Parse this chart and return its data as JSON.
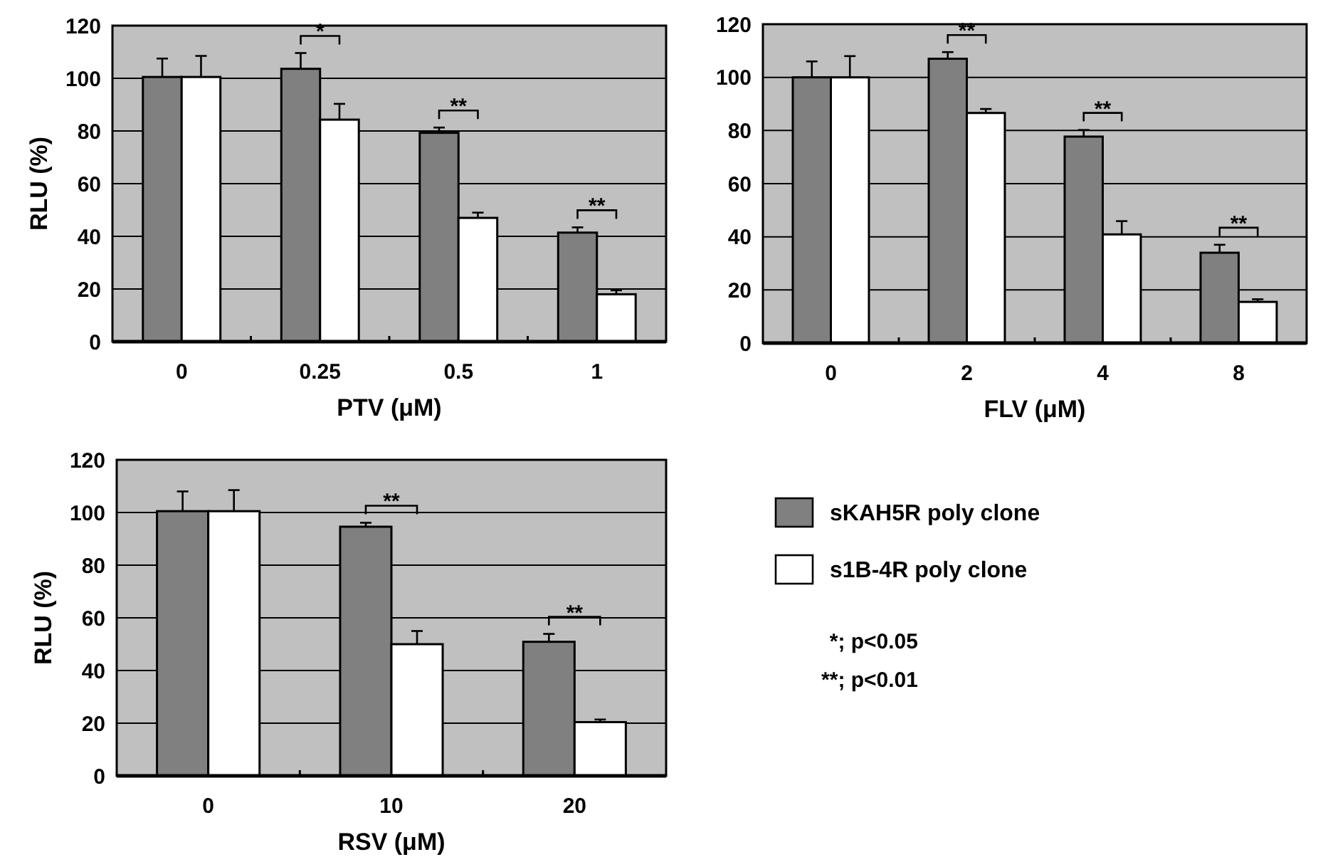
{
  "chart_data": [
    {
      "type": "bar",
      "xlabel": "PTV (μM)",
      "ylabel": "RLU (%)",
      "categories": [
        "0",
        "0.25",
        "0.5",
        "1"
      ],
      "series": [
        {
          "color": "#808080",
          "values": [
            100.5,
            103.6,
            79.3,
            41.4
          ],
          "errors": [
            7,
            6,
            2,
            2
          ]
        },
        {
          "color": "#ffffff",
          "values": [
            100.5,
            84.3,
            47,
            18
          ],
          "errors": [
            8,
            6,
            2,
            1.5
          ]
        }
      ],
      "ylim": [
        0,
        120
      ],
      "yticks": [
        0,
        20,
        40,
        60,
        80,
        100,
        120
      ],
      "grid": "y",
      "legend": false,
      "annotations": [
        "*",
        "**",
        "**"
      ]
    },
    {
      "type": "bar",
      "xlabel": "FLV (μM)",
      "categories": [
        "0",
        "2",
        "4",
        "8"
      ],
      "series": [
        {
          "color": "#808080",
          "values": [
            100,
            107,
            77.7,
            34
          ],
          "errors": [
            6,
            2.5,
            2.5,
            3
          ]
        },
        {
          "color": "#ffffff",
          "values": [
            100,
            86.6,
            40.9,
            15.5
          ],
          "errors": [
            8,
            1.5,
            5,
            1
          ]
        }
      ],
      "ylim": [
        0,
        120
      ],
      "yticks": [
        0,
        20,
        40,
        60,
        80,
        100,
        120
      ],
      "grid": "y",
      "legend": false,
      "annotations": [
        "**",
        "**",
        "**"
      ]
    },
    {
      "type": "bar",
      "xlabel": "RSV (μM)",
      "ylabel": "RLU (%)",
      "categories": [
        "0",
        "10",
        "20"
      ],
      "series": [
        {
          "name": "sKAH5R poly clone",
          "color": "#808080",
          "values": [
            100.5,
            94.6,
            50.9
          ],
          "errors": [
            7.5,
            1.5,
            3
          ]
        },
        {
          "name": "s1B-4R poly clone",
          "color": "#ffffff",
          "values": [
            100.5,
            50,
            20.4
          ],
          "errors": [
            8,
            5,
            1
          ]
        }
      ],
      "ylim": [
        0,
        120
      ],
      "yticks": [
        0,
        20,
        40,
        60,
        80,
        100,
        120
      ],
      "grid": "y",
      "legend": "right",
      "annotations": [
        "**",
        "**"
      ]
    },
    {
      "type": "other",
      "annotations": [
        "*; p<0.05",
        "**; p<0.01"
      ]
    }
  ]
}
